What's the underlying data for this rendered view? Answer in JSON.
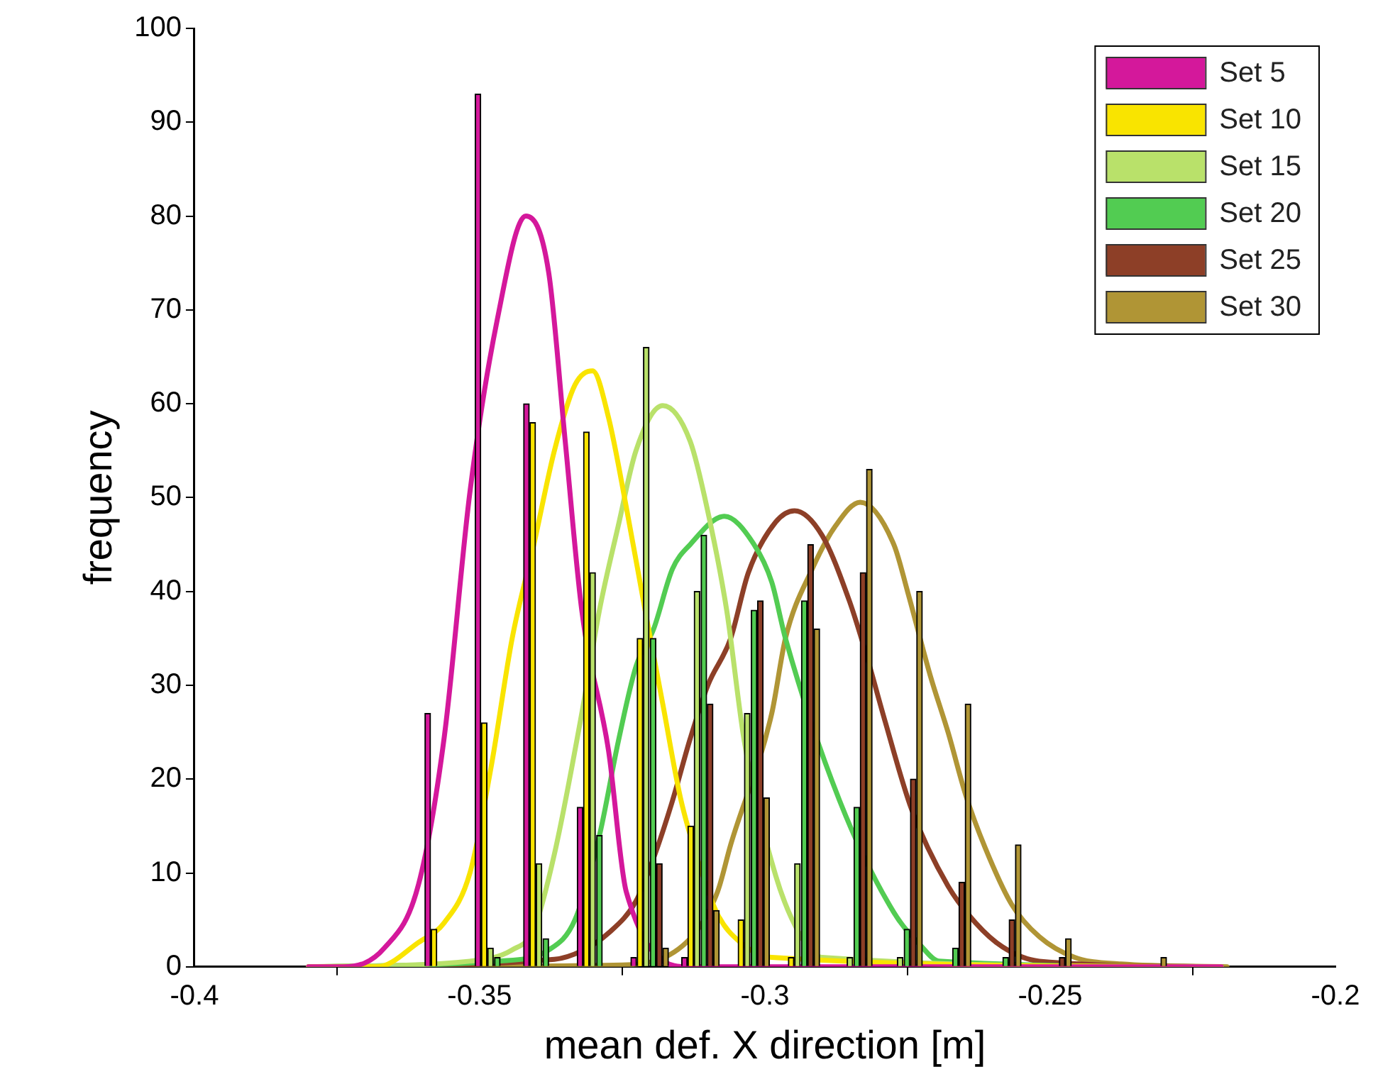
{
  "chart_data": {
    "type": "bar",
    "xlabel": "mean def. X direction [m]",
    "ylabel": "frequency",
    "xlim": [
      -0.4,
      -0.2
    ],
    "xticks": [
      -0.4,
      -0.35,
      -0.3,
      -0.25,
      -0.2
    ],
    "ylim": [
      0,
      100
    ],
    "yticks": [
      0,
      10,
      20,
      30,
      40,
      50,
      60,
      70,
      80,
      90,
      100
    ],
    "grid": false,
    "legend": "top right",
    "marker": "none",
    "series": [
      {
        "name": "Set 5",
        "color": "#d4189b",
        "x": [
          -0.3591,
          -0.3503,
          -0.3418,
          -0.3324,
          -0.323,
          -0.3141
        ],
        "values": [
          27,
          93,
          60,
          17,
          1,
          1
        ]
      },
      {
        "name": "Set 10",
        "color": "#f9e400",
        "x": [
          -0.358,
          -0.3492,
          -0.3407,
          -0.3313,
          -0.3219,
          -0.313,
          -0.3042,
          -0.2954
        ],
        "values": [
          4,
          26,
          58,
          57,
          35,
          15,
          5,
          1
        ]
      },
      {
        "name": "Set 15",
        "color": "#b9e16a",
        "x": [
          -0.3481,
          -0.3396,
          -0.3302,
          -0.3208,
          -0.3119,
          -0.3031,
          -0.2943,
          -0.2851,
          -0.2763
        ],
        "values": [
          2,
          11,
          42,
          66,
          40,
          27,
          11,
          1,
          1
        ]
      },
      {
        "name": "Set 20",
        "color": "#52cc52",
        "x": [
          -0.3469,
          -0.3384,
          -0.329,
          -0.3196,
          -0.3107,
          -0.3019,
          -0.2931,
          -0.2839,
          -0.2751,
          -0.2666,
          -0.2578
        ],
        "values": [
          1,
          3,
          14,
          35,
          46,
          38,
          39,
          17,
          4,
          2,
          1
        ]
      },
      {
        "name": "Set 25",
        "color": "#8d3f27",
        "x": [
          -0.3185,
          -0.3096,
          -0.3008,
          -0.292,
          -0.2828,
          -0.274,
          -0.2655,
          -0.2567,
          -0.2479
        ],
        "values": [
          11,
          28,
          39,
          45,
          42,
          20,
          9,
          5,
          1
        ]
      },
      {
        "name": "Set 30",
        "color": "#b09535",
        "x": [
          -0.3174,
          -0.3085,
          -0.2997,
          -0.2909,
          -0.2817,
          -0.2729,
          -0.2644,
          -0.2556,
          -0.2468,
          -0.2301
        ],
        "values": [
          2,
          6,
          18,
          36,
          53,
          40,
          28,
          13,
          3,
          1
        ]
      },
      {
        "type": "line",
        "color": "#d4189b",
        "x": [
          -0.38,
          -0.3738,
          -0.3667,
          -0.3607,
          -0.3562,
          -0.3517,
          -0.3469,
          -0.3419,
          -0.3379,
          -0.335,
          -0.3321,
          -0.3274,
          -0.3243,
          -0.3131,
          -0.22
        ],
        "values": [
          0,
          0,
          2,
          8.8,
          24.5,
          50.6,
          69,
          80,
          74,
          56,
          38,
          23,
          8,
          0,
          0
        ]
      },
      {
        "type": "line",
        "color": "#f9e400",
        "x": [
          -0.38,
          -0.3679,
          -0.3607,
          -0.3562,
          -0.3517,
          -0.3479,
          -0.3443,
          -0.3405,
          -0.3369,
          -0.3333,
          -0.3302,
          -0.3274,
          -0.3243,
          -0.321,
          -0.3179,
          -0.3148,
          -0.3114,
          -0.3083,
          -0.3043,
          -0.2988,
          -0.22
        ],
        "values": [
          0,
          0,
          2.6,
          4.7,
          10,
          21.6,
          35,
          45,
          55,
          62,
          63.5,
          58.5,
          49,
          38,
          28,
          18,
          10.7,
          5.6,
          2.6,
          1,
          0
        ]
      },
      {
        "type": "line",
        "color": "#b9e16a",
        "x": [
          -0.38,
          -0.3517,
          -0.3443,
          -0.3405,
          -0.3369,
          -0.3321,
          -0.329,
          -0.3257,
          -0.3226,
          -0.3179,
          -0.3131,
          -0.31,
          -0.3067,
          -0.3036,
          -0.2981,
          -0.294,
          -0.29,
          -0.22
        ],
        "values": [
          0,
          0.6,
          1.8,
          4,
          12,
          27,
          38,
          47,
          55,
          59.8,
          56,
          48.5,
          38,
          24,
          9.7,
          3.6,
          1,
          0
        ]
      },
      {
        "type": "line",
        "color": "#52cc52",
        "x": [
          -0.38,
          -0.3469,
          -0.3379,
          -0.3333,
          -0.329,
          -0.3257,
          -0.3226,
          -0.3195,
          -0.3162,
          -0.3131,
          -0.3071,
          -0.3019,
          -0.2988,
          -0.2964,
          -0.2869,
          -0.2774,
          -0.2726,
          -0.2695,
          -0.22
        ],
        "values": [
          0,
          0.6,
          1.8,
          5,
          14,
          24,
          32,
          36,
          42.4,
          45,
          48,
          45,
          41,
          35,
          17.7,
          5.8,
          2.2,
          0.6,
          0
        ]
      },
      {
        "type": "line",
        "color": "#8d3f27",
        "x": [
          -0.38,
          -0.3369,
          -0.3321,
          -0.3274,
          -0.3226,
          -0.3195,
          -0.3162,
          -0.3131,
          -0.31,
          -0.306,
          -0.3029,
          -0.2981,
          -0.2948,
          -0.29,
          -0.2852,
          -0.2821,
          -0.279,
          -0.2743,
          -0.2679,
          -0.2631,
          -0.2583,
          -0.2519,
          -0.22
        ],
        "values": [
          0,
          0.8,
          1.7,
          3.6,
          7,
          11.6,
          17.7,
          24.3,
          30,
          35,
          42,
          47.4,
          48.6,
          46,
          39,
          33,
          26.3,
          16.8,
          8.6,
          4.7,
          2.1,
          0.6,
          0
        ]
      },
      {
        "type": "line",
        "color": "#b09535",
        "x": [
          -0.379,
          -0.325,
          -0.3131,
          -0.3083,
          -0.306,
          -0.2988,
          -0.2964,
          -0.2917,
          -0.2876,
          -0.2833,
          -0.2774,
          -0.275,
          -0.271,
          -0.2679,
          -0.2648,
          -0.2614,
          -0.2567,
          -0.2519,
          -0.2457,
          -0.2376,
          -0.219
        ],
        "values": [
          0,
          0.2,
          3,
          8,
          13,
          27,
          35,
          42.4,
          47,
          49.5,
          45,
          40,
          31,
          25,
          18.3,
          12.7,
          6.6,
          3.2,
          1,
          0.3,
          0
        ]
      }
    ]
  }
}
